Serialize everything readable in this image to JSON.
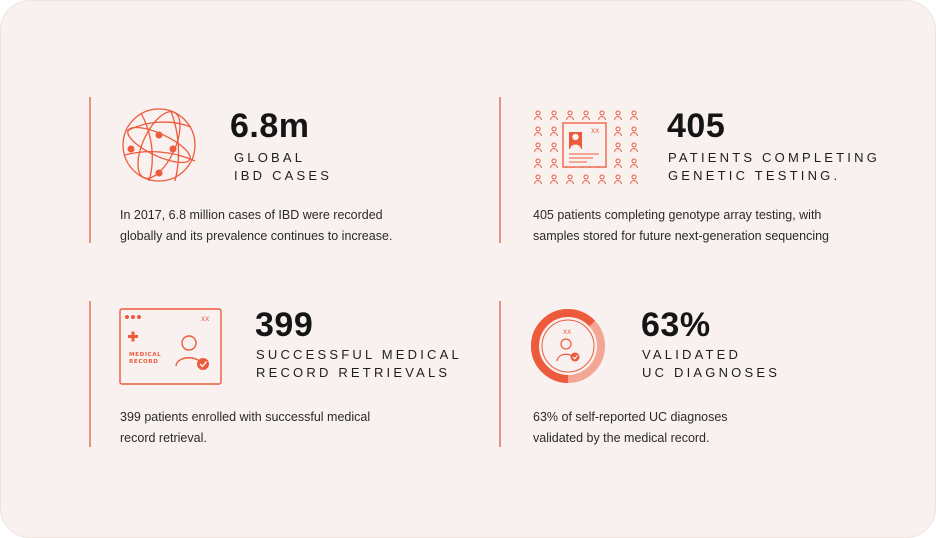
{
  "colors": {
    "accent": "#ee5a3c",
    "accent_light": "#f2a693",
    "background": "#f8f1ef",
    "text": "#151515"
  },
  "stats": [
    {
      "icon": "globe-icon",
      "value": "6.8m",
      "caption_line1": "GLOBAL",
      "caption_line2": "IBD CASES",
      "desc_line1": "In 2017, 6.8 million cases of IBD were recorded",
      "desc_line2": "globally and its prevalence continues to increase."
    },
    {
      "icon": "patients-grid-icon",
      "icon_text": "XX",
      "value": "405",
      "caption_line1": "PATIENTS COMPLETING",
      "caption_line2": "GENETIC TESTING.",
      "desc_line1": "405 patients completing genotype array testing, with",
      "desc_line2": "samples stored for future next-generation sequencing"
    },
    {
      "icon": "medical-record-icon",
      "icon_text": "XX",
      "icon_label_line1": "MEDICAL",
      "icon_label_line2": "RECORD",
      "value": "399",
      "caption_line1": "SUCCESSFUL MEDICAL",
      "caption_line2": "RECORD RETRIEVALS",
      "desc_line1": "399 patients enrolled with successful medical",
      "desc_line2": "record retrieval."
    },
    {
      "icon": "progress-ring-icon",
      "icon_text": "XX",
      "progress_percent": 63,
      "value": "63%",
      "caption_line1": "VALIDATED",
      "caption_line2": "UC DIAGNOSES",
      "desc_line1": "63% of self-reported UC diagnoses",
      "desc_line2": "validated by the medical record."
    }
  ]
}
